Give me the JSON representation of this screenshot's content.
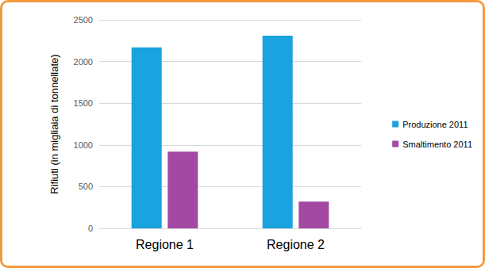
{
  "chart_data": {
    "type": "bar",
    "y_label": "Rifiuti (in migliaia di tonnellate)",
    "categories": [
      "Regione 1",
      "Regione 2"
    ],
    "series": [
      {
        "name": "Produzione 2011",
        "color": "#1AA3DF",
        "values": [
          2170,
          2310
        ]
      },
      {
        "name": "Smaltimento 2011",
        "color": "#A349A4",
        "values": [
          920,
          320
        ]
      }
    ],
    "ylim": [
      0,
      2500
    ],
    "yticks": [
      0,
      500,
      1000,
      1500,
      2000,
      2500
    ],
    "grid": true,
    "legend": "right"
  }
}
